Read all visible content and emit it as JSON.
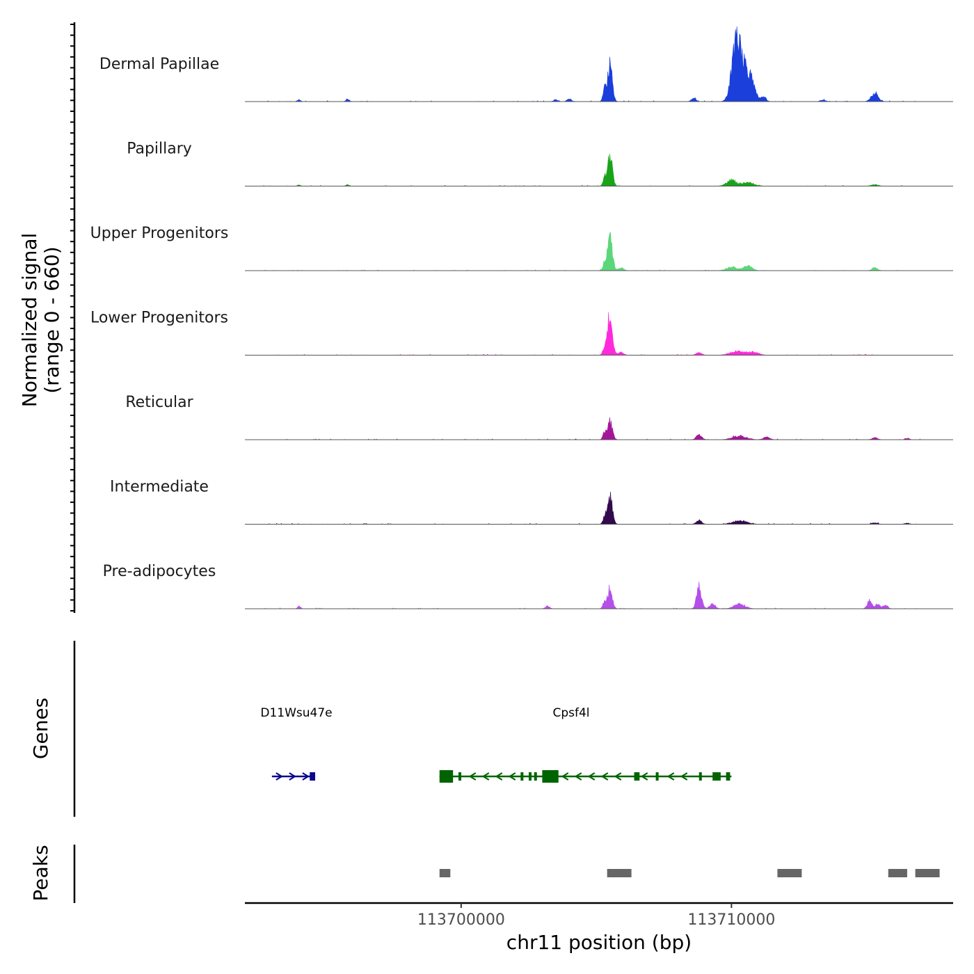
{
  "chart_data": {
    "type": "area",
    "title": "",
    "chromosome": "chr11",
    "xlabel": "chr11 position (bp)",
    "ylabel": "Normalized signal",
    "ylabel_range": "(range 0 - 660)",
    "xlim": [
      113692000,
      113718200
    ],
    "ylim": [
      0,
      660
    ],
    "x_ticks": [
      113700000,
      113710000
    ],
    "x_tick_labels": [
      "113700000",
      "113710000"
    ],
    "tracks": [
      {
        "name": "Dermal Papillae",
        "color": "#1a3fdb",
        "peaks": [
          [
            113694000,
            20,
            60
          ],
          [
            113695800,
            25,
            60
          ],
          [
            113703500,
            20,
            80
          ],
          [
            113704000,
            25,
            80
          ],
          [
            113705500,
            360,
            90
          ],
          [
            113705300,
            110,
            60
          ],
          [
            113708600,
            40,
            80
          ],
          [
            113710200,
            660,
            170
          ],
          [
            113710600,
            300,
            200
          ],
          [
            113711200,
            50,
            80
          ],
          [
            113713400,
            20,
            80
          ],
          [
            113715300,
            80,
            130
          ]
        ]
      },
      {
        "name": "Papillary",
        "color": "#1aa31a",
        "peaks": [
          [
            113694000,
            12,
            60
          ],
          [
            113695800,
            15,
            60
          ],
          [
            113705500,
            300,
            90
          ],
          [
            113705300,
            60,
            60
          ],
          [
            113710000,
            60,
            180
          ],
          [
            113710600,
            40,
            200
          ],
          [
            113715300,
            15,
            130
          ]
        ]
      },
      {
        "name": "Upper Progenitors",
        "color": "#5cd67a",
        "peaks": [
          [
            113705500,
            350,
            90
          ],
          [
            113705300,
            70,
            60
          ],
          [
            113705900,
            30,
            100
          ],
          [
            113710000,
            40,
            180
          ],
          [
            113710600,
            50,
            150
          ],
          [
            113715300,
            30,
            100
          ]
        ]
      },
      {
        "name": "Lower Progenitors",
        "color": "#ff2adb",
        "peaks": [
          [
            113705500,
            400,
            90
          ],
          [
            113705300,
            80,
            60
          ],
          [
            113705900,
            30,
            100
          ],
          [
            113708800,
            25,
            100
          ],
          [
            113710200,
            40,
            250
          ],
          [
            113710800,
            30,
            200
          ]
        ]
      },
      {
        "name": "Reticular",
        "color": "#a3169a",
        "peaks": [
          [
            113705500,
            180,
            90
          ],
          [
            113705300,
            60,
            60
          ],
          [
            113708800,
            50,
            100
          ],
          [
            113710300,
            40,
            250
          ],
          [
            113711300,
            25,
            120
          ],
          [
            113715300,
            20,
            100
          ],
          [
            113716500,
            15,
            80
          ]
        ]
      },
      {
        "name": "Intermediate",
        "color": "#330a4d",
        "peaks": [
          [
            113705500,
            280,
            90
          ],
          [
            113705300,
            60,
            60
          ],
          [
            113708800,
            40,
            100
          ],
          [
            113710300,
            40,
            250
          ],
          [
            113715300,
            15,
            100
          ],
          [
            113716500,
            12,
            80
          ]
        ]
      },
      {
        "name": "Pre-adipocytes",
        "color": "#b44fe8",
        "peaks": [
          [
            113694000,
            20,
            60
          ],
          [
            113703200,
            25,
            80
          ],
          [
            113705500,
            200,
            90
          ],
          [
            113705300,
            60,
            60
          ],
          [
            113708800,
            220,
            90
          ],
          [
            113709300,
            50,
            100
          ],
          [
            113710300,
            50,
            200
          ],
          [
            113715100,
            80,
            80
          ],
          [
            113715400,
            40,
            100
          ],
          [
            113715700,
            40,
            80
          ]
        ]
      }
    ],
    "genes": [
      {
        "name": "D11Wsu47e",
        "strand": "+",
        "color": "#0a0a8c",
        "start": 113693000,
        "end": 113694600,
        "exons": [
          [
            113694400,
            113694600
          ]
        ]
      },
      {
        "name": "Cpsf4l",
        "strand": "-",
        "color": "#006400",
        "start": 113699200,
        "end": 113710000,
        "exons": [
          [
            113699200,
            113699700
          ],
          [
            113699900,
            113700000
          ],
          [
            113702200,
            113702300
          ],
          [
            113702500,
            113702600
          ],
          [
            113702700,
            113702800
          ],
          [
            113703000,
            113703600
          ],
          [
            113706400,
            113706600
          ],
          [
            113707200,
            113707300
          ],
          [
            113708800,
            113708900
          ],
          [
            113709300,
            113709600
          ],
          [
            113709800,
            113709950
          ]
        ]
      }
    ],
    "peaks_track": [
      [
        113699200,
        113699600
      ],
      [
        113705400,
        113706300
      ],
      [
        113711700,
        113712600
      ],
      [
        113715800,
        113716500
      ],
      [
        113716800,
        113717700
      ]
    ],
    "y_track_titles": [
      "Genes",
      "Peaks"
    ]
  }
}
